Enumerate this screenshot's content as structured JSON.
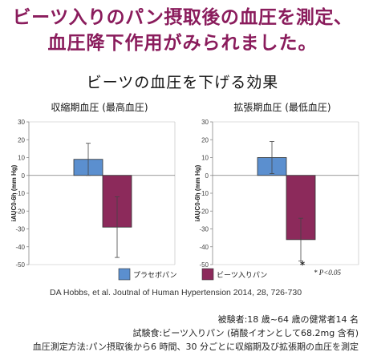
{
  "headline": {
    "line1": "ビーツ入りのパン摂取後の血圧を測定、",
    "line2": "血圧降下作用がみられました。"
  },
  "chart_title": "ビーツの血圧を下げる効果",
  "legend": {
    "placebo": "プラセボパン",
    "beets": "ビーツ入りパン",
    "significance": "* P<0.05"
  },
  "source": "DA Hobbs, et al.  Joutnal of Human Hypertension 2014, 28, 726-730",
  "info": {
    "subjects": "被験者:18 歳~64 歳の健常者14 名",
    "test_food": "試験食:ビーツ入りパン (硝酸イオンとして68.2mg 含有)",
    "method": "血圧測定方法:パン摂取後から6 時間、30 分ごとに収縮期及び拡張期の血圧を測定"
  },
  "colors": {
    "placebo": "#5b8fcf",
    "beets": "#8c2a5b"
  },
  "chart_data": [
    {
      "type": "bar",
      "title": "収縮期血圧  (最高血圧)",
      "ylabel": "iAUC0-6h  (mm Hg)",
      "ylim": [
        -50,
        30
      ],
      "yticks": [
        -50,
        -40,
        -30,
        -20,
        -10,
        0,
        10,
        20,
        30
      ],
      "categories": [
        "プラセボパン",
        "ビーツ入りパン"
      ],
      "values": [
        9,
        -29
      ],
      "error_high": [
        18,
        -12
      ],
      "error_low": [
        0,
        -46
      ],
      "significant": [
        false,
        false
      ]
    },
    {
      "type": "bar",
      "title": "拡張期血圧  (最低血圧)",
      "ylabel": "iAUC0-6h  (mm Hg)",
      "ylim": [
        -50,
        30
      ],
      "yticks": [
        -50,
        -40,
        -30,
        -20,
        -10,
        0,
        10,
        20,
        30
      ],
      "categories": [
        "プラセボパン",
        "ビーツ入りパン"
      ],
      "values": [
        10,
        -36
      ],
      "error_high": [
        19,
        -24
      ],
      "error_low": [
        1,
        -48
      ],
      "significant": [
        false,
        true
      ]
    }
  ]
}
